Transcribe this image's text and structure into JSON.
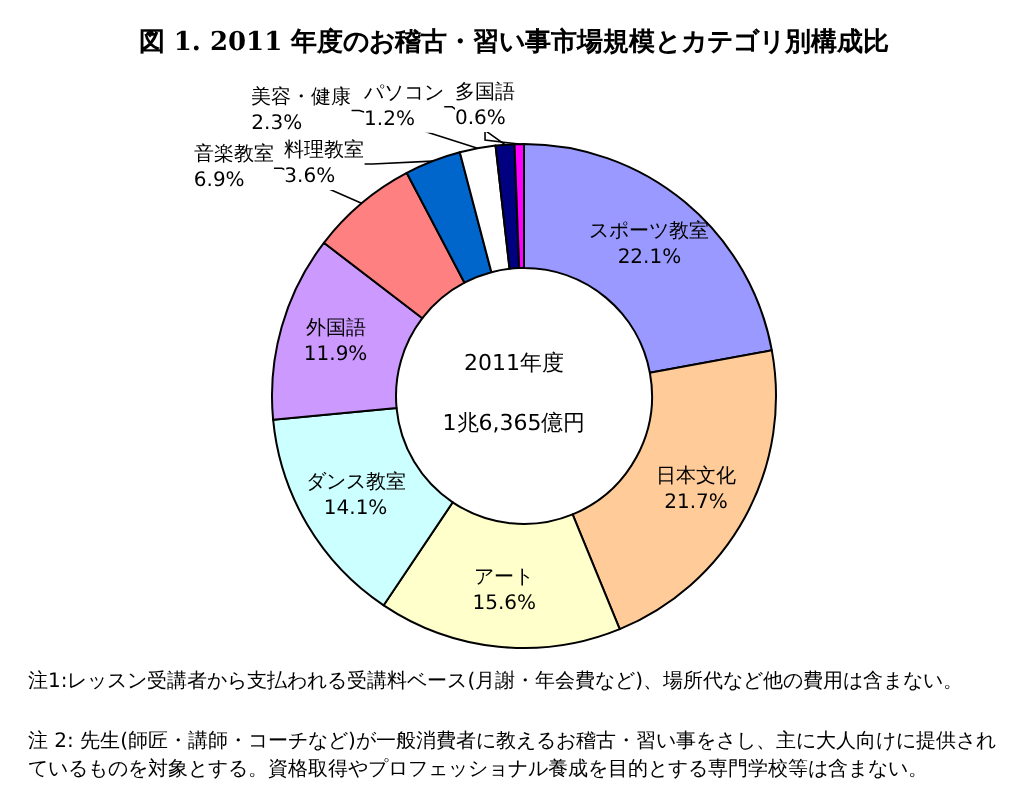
{
  "chart_data": {
    "type": "donut",
    "title": "図 1. 2011 年度のお稽古・習い事市場規模とカテゴリ別構成比",
    "categories": [
      "スポーツ教室",
      "日本文化",
      "アート",
      "ダンス教室",
      "外国語",
      "音楽教室",
      "料理教室",
      "美容・健康",
      "パソコン",
      "多国語"
    ],
    "values": [
      22.1,
      21.7,
      15.6,
      14.1,
      11.9,
      6.9,
      3.6,
      2.3,
      1.2,
      0.6
    ],
    "value_labels": [
      "22.1%",
      "21.7%",
      "15.6%",
      "14.1%",
      "11.9%",
      "6.9%",
      "3.6%",
      "2.3%",
      "1.2%",
      "0.6%"
    ],
    "colors": [
      "#9999ff",
      "#ffcc99",
      "#ffffcc",
      "#ccffff",
      "#cc99ff",
      "#ff8080",
      "#0066cc",
      "#ffffff",
      "#000080",
      "#ff00ff"
    ],
    "annotations": [
      "2011年度",
      "1兆6,365億円",
      "注1:レッスン受講者から支払われる受講料ベース(月謝・年会費など)、場所代など他の費用は含まない。",
      "注 2: 先生(師匠・講師・コーチなど)が一般消費者に教えるお稽古・習い事をさし、主に大人向けに提供されているものを対象とする。資格取得やプロフェッショナル養成を目的とする専門学校等は含まない。"
    ],
    "legend": false
  }
}
